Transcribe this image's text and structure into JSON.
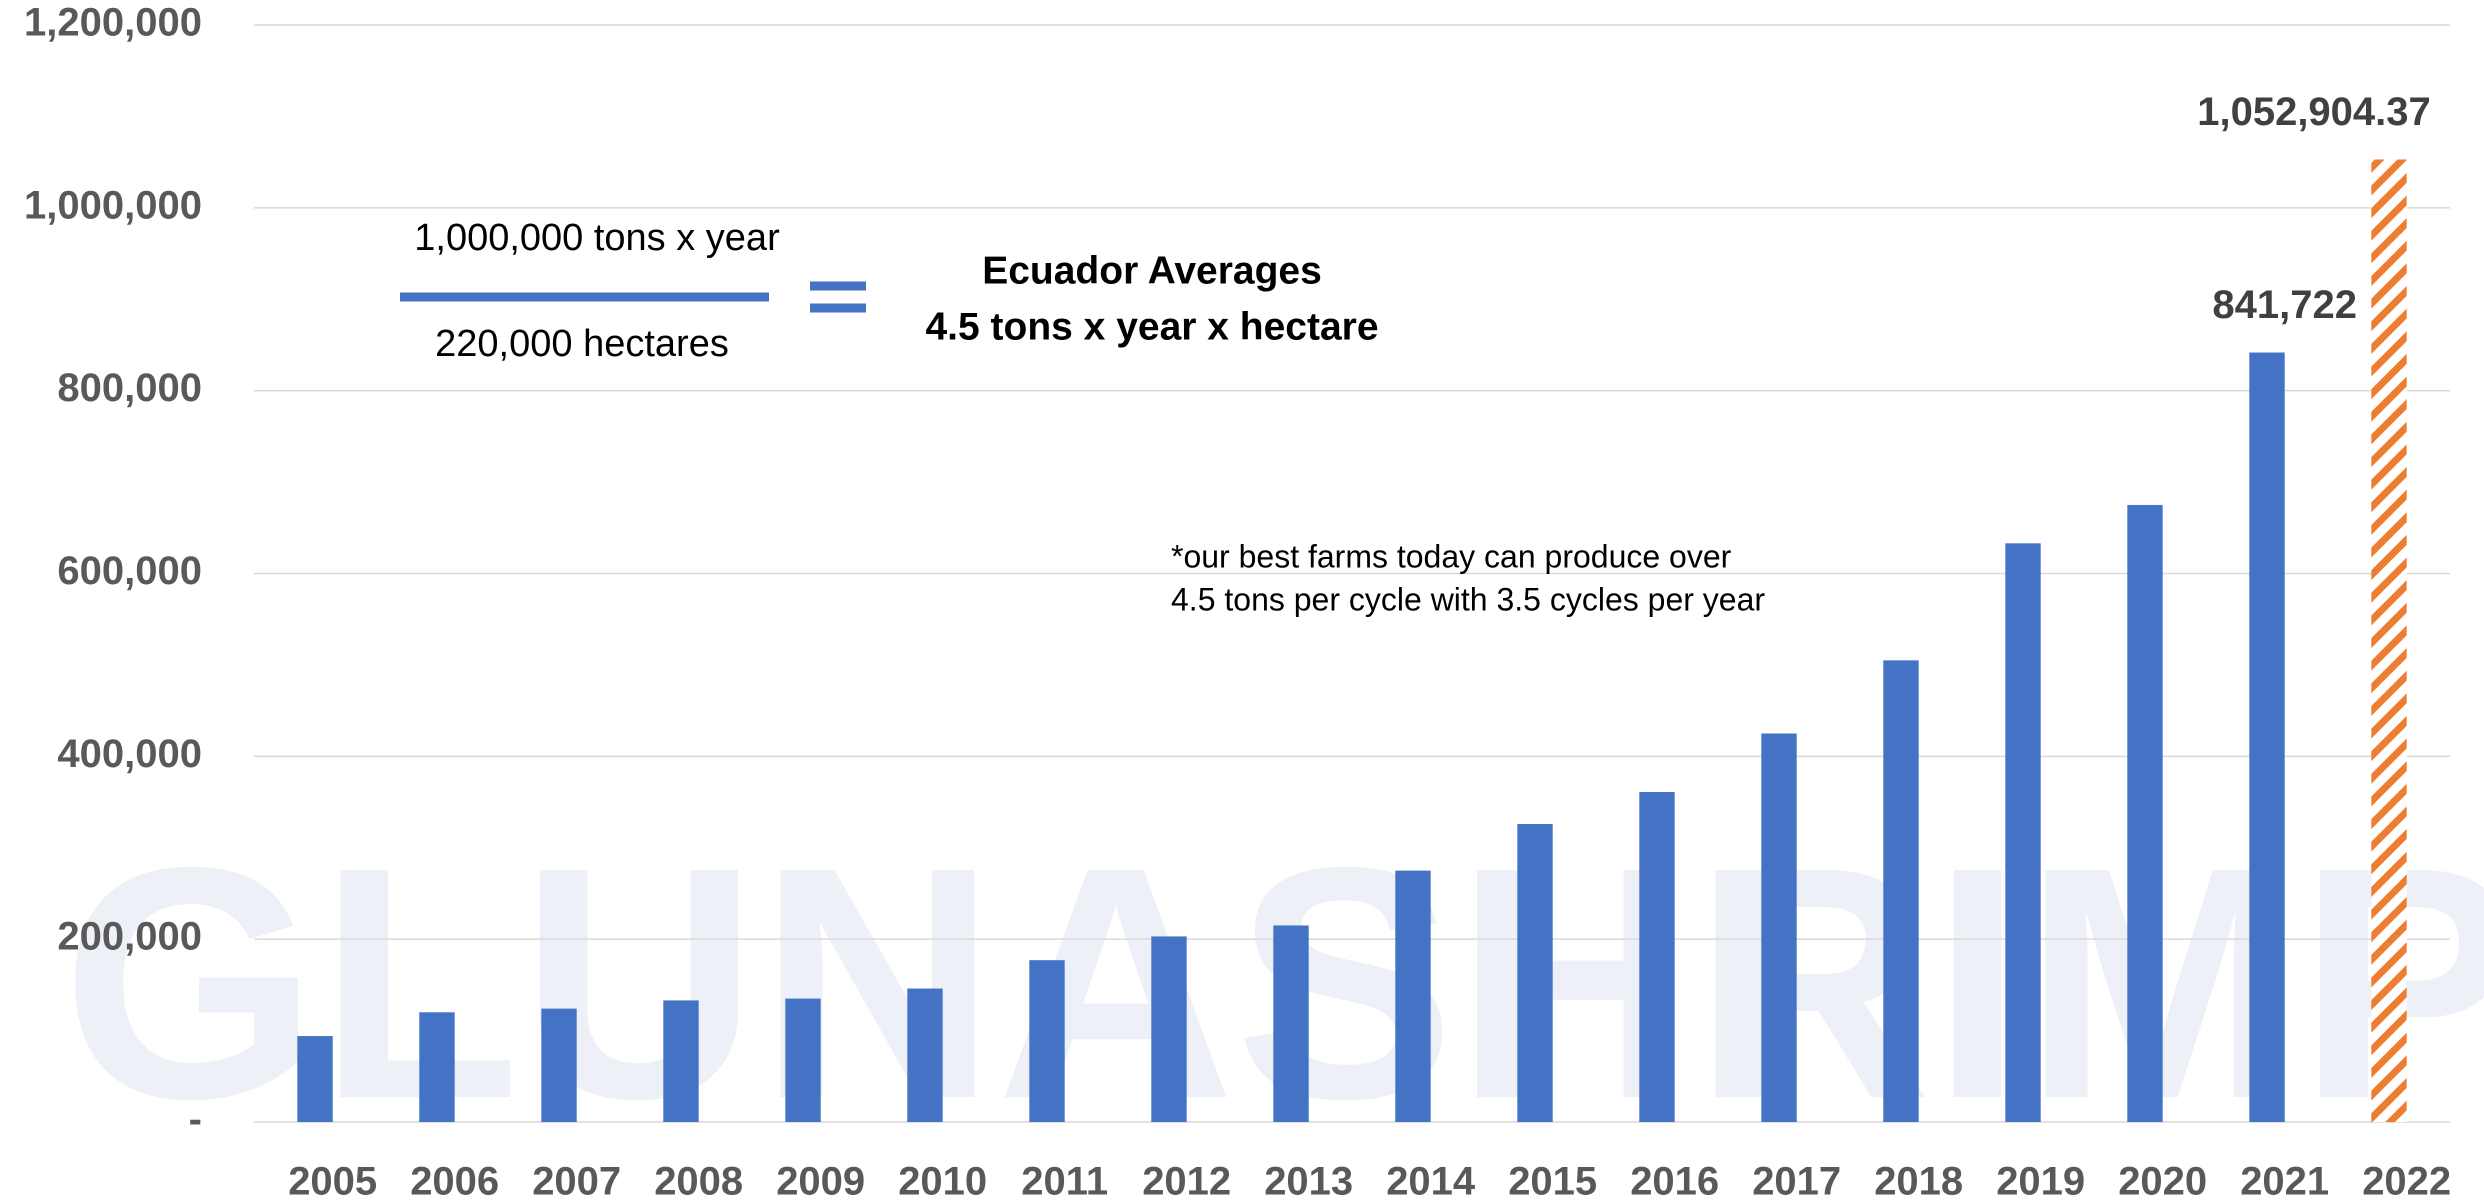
{
  "chart_data": {
    "type": "bar",
    "categories": [
      "2005",
      "2006",
      "2007",
      "2008",
      "2009",
      "2010",
      "2011",
      "2012",
      "2013",
      "2014",
      "2015",
      "2016",
      "2017",
      "2018",
      "2019",
      "2020",
      "2021",
      "2022"
    ],
    "values": [
      94000,
      120000,
      124000,
      133000,
      135000,
      146000,
      177000,
      203000,
      215000,
      275000,
      326000,
      361000,
      425000,
      505000,
      633000,
      675000,
      841722,
      1052904.37
    ],
    "value_labels": [
      null,
      null,
      null,
      null,
      null,
      null,
      null,
      null,
      null,
      null,
      null,
      null,
      null,
      null,
      null,
      null,
      "841,722",
      "1,052,904.37"
    ],
    "colors": [
      "#4472c4",
      "#4472c4",
      "#4472c4",
      "#4472c4",
      "#4472c4",
      "#4472c4",
      "#4472c4",
      "#4472c4",
      "#4472c4",
      "#4472c4",
      "#4472c4",
      "#4472c4",
      "#4472c4",
      "#4472c4",
      "#4472c4",
      "#4472c4",
      "#4472c4",
      "#ed7d31"
    ],
    "patterns": [
      "solid",
      "solid",
      "solid",
      "solid",
      "solid",
      "solid",
      "solid",
      "solid",
      "solid",
      "solid",
      "solid",
      "solid",
      "solid",
      "solid",
      "solid",
      "solid",
      "solid",
      "hatch"
    ],
    "ylim": [
      0,
      1200000
    ],
    "yticks": [
      {
        "value": 0,
        "label": "-"
      },
      {
        "value": 200000,
        "label": "200,000"
      },
      {
        "value": 400000,
        "label": "400,000"
      },
      {
        "value": 600000,
        "label": "600,000"
      },
      {
        "value": 800000,
        "label": "800,000"
      },
      {
        "value": 1000000,
        "label": "1,000,000"
      },
      {
        "value": 1200000,
        "label": "1,200,000"
      }
    ],
    "grid": true,
    "annotations": {
      "formula_numerator": "1,000,000 tons x year",
      "formula_denominator": "220,000 hectares",
      "result_title": "Ecuador Averages",
      "result_value": "4.5 tons x year x hectare",
      "note": [
        "*our best farms today can produce over",
        "4.5 tons per cycle with 3.5 cycles per year"
      ]
    },
    "watermark": "GLUNASHRIMP"
  }
}
